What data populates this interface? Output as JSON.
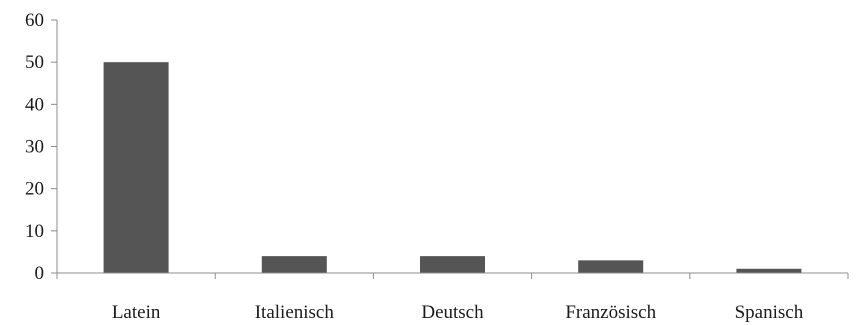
{
  "chart_data": {
    "type": "bar",
    "title": "",
    "xlabel": "",
    "ylabel": "",
    "categories": [
      "Latein",
      "Italienisch",
      "Deutsch",
      "Französisch",
      "Spanisch"
    ],
    "values": [
      50,
      4,
      4,
      3,
      1
    ],
    "ylim": [
      0,
      60
    ],
    "yticks": [
      "0",
      "10",
      "20",
      "30",
      "40",
      "50",
      "60"
    ],
    "grid": false,
    "legend": "none",
    "colors": {
      "bar": "#555555",
      "axis": "#8c8c8c",
      "text": "#1a1a1a"
    }
  }
}
